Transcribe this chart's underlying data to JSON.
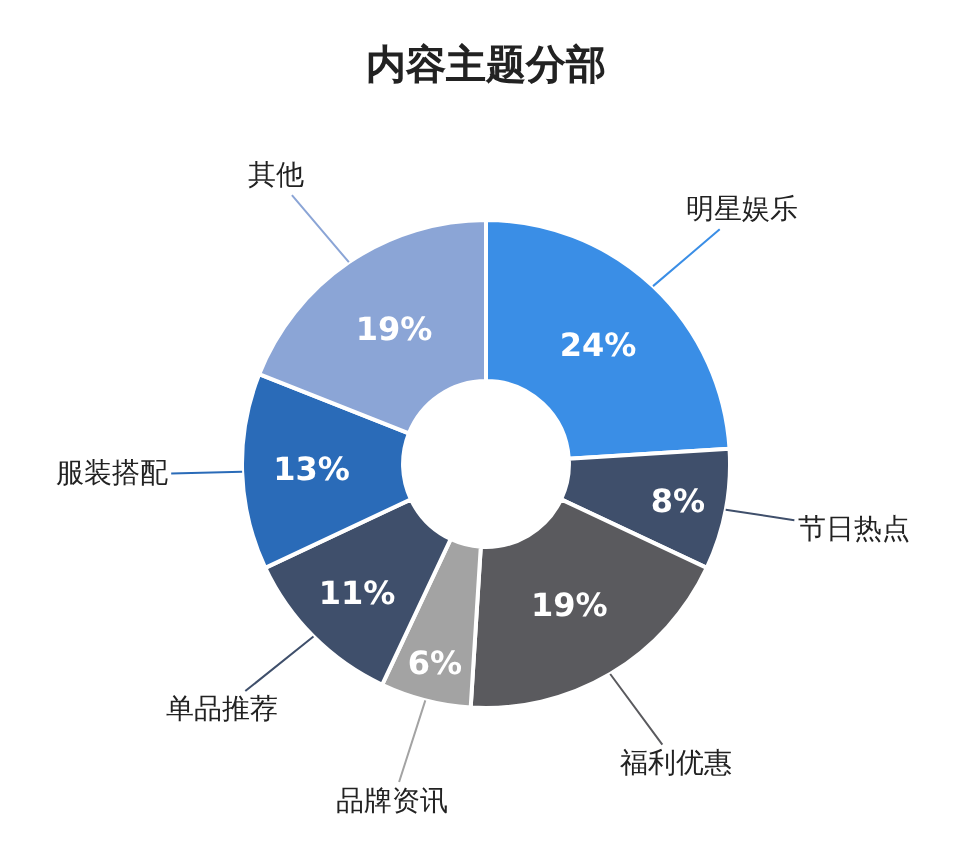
{
  "chart_data": {
    "type": "donut",
    "title": "内容主题分部",
    "categories": [
      "明星娱乐",
      "节日热点",
      "福利优惠",
      "品牌资讯",
      "单品推荐",
      "服装搭配",
      "其他"
    ],
    "values": [
      24,
      8,
      19,
      6,
      11,
      13,
      19
    ],
    "value_labels": [
      "24%",
      "8%",
      "19%",
      "6%",
      "11%",
      "13%",
      "19%"
    ],
    "colors": [
      "#3a8ee6",
      "#3f4f6b",
      "#5a5a5e",
      "#a3a3a3",
      "#3f4f6b",
      "#2a6bb8",
      "#8ba5d6"
    ],
    "legend": false
  }
}
